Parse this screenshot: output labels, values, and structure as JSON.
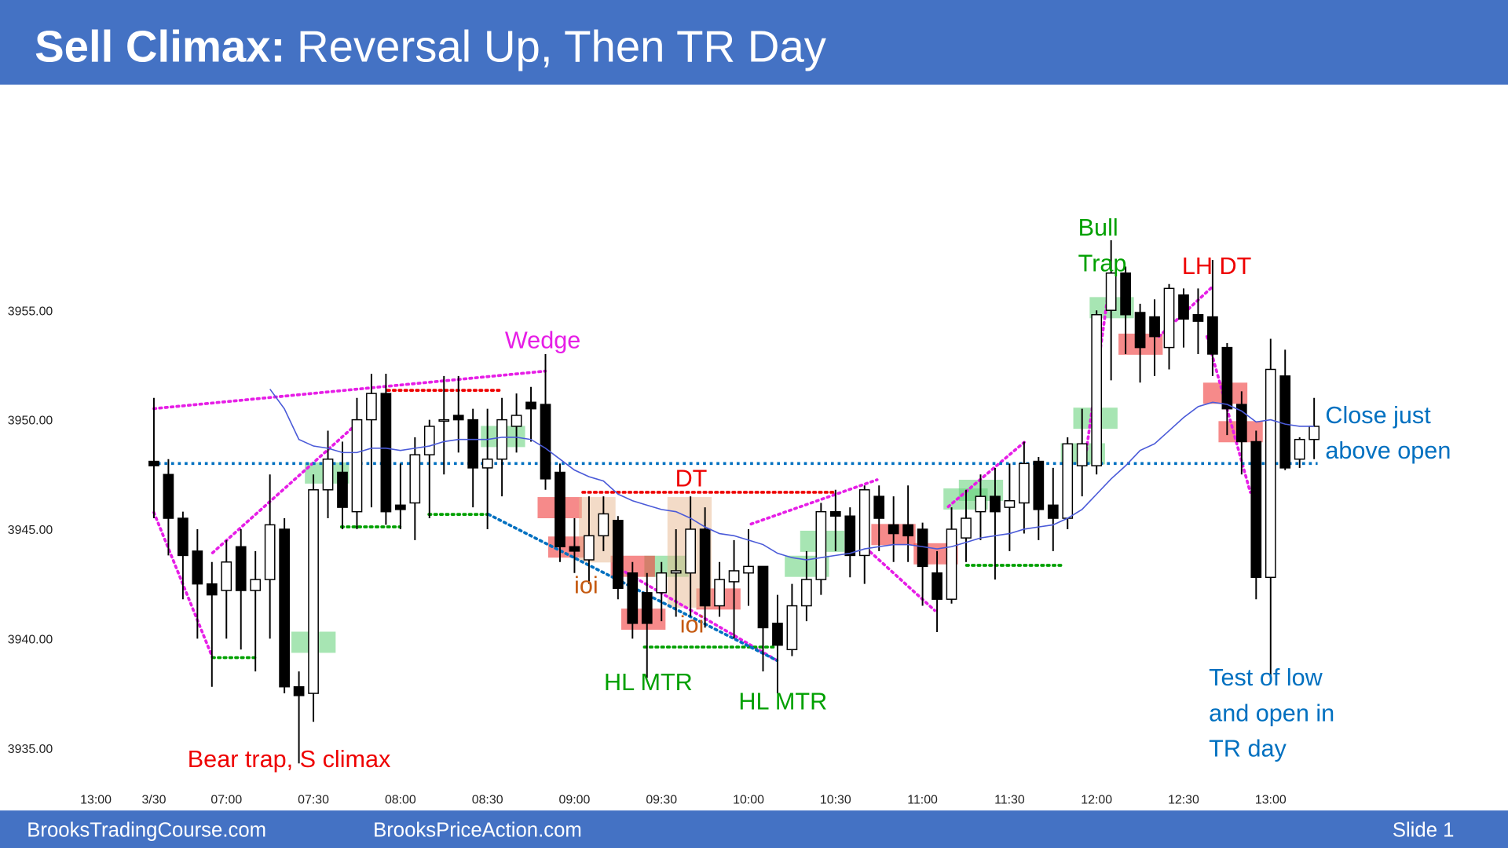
{
  "chart_data": {
    "type": "candlestick",
    "title_bold": "Sell Climax:",
    "title": "Reversal Up, Then TR Day",
    "categories": [
      "13:00",
      null,
      null,
      null,
      "3/30",
      null,
      null,
      null,
      null,
      "07:00",
      null,
      null,
      null,
      null,
      null,
      "07:30",
      null,
      null,
      null,
      null,
      null,
      "08:00",
      null,
      null,
      null,
      null,
      null,
      "08:30",
      null,
      null,
      null,
      null,
      null,
      "09:00",
      null,
      null,
      null,
      null,
      null,
      "09:30",
      null,
      null,
      null,
      null,
      null,
      "10:00",
      null,
      null,
      null,
      null,
      null,
      "10:30",
      null,
      null,
      null,
      null,
      null,
      "11:00",
      null,
      null,
      null,
      null,
      null,
      "11:30",
      null,
      null,
      null,
      null,
      null,
      "12:00",
      null,
      null,
      null,
      null,
      null,
      "12:30",
      null,
      null,
      null,
      null,
      null,
      "13:00",
      null,
      null,
      null
    ],
    "open": [
      null,
      null,
      null,
      null,
      3948.1,
      3947.5,
      3945.5,
      3944,
      3942.5,
      3942.2,
      3944.2,
      3942.2,
      3942.7,
      3945,
      3937.8,
      3937.5,
      3946.8,
      3947.6,
      3945.8,
      3950,
      3951.2,
      3946.1,
      3946.2,
      3948.4,
      3950,
      3950.2,
      3950,
      3947.8,
      3948.2,
      3949.7,
      3950.8,
      3950.7,
      3947.6,
      3944.2,
      3943.6,
      3944.7,
      3945.4,
      3943,
      3942.1,
      3942.1,
      3943,
      3943,
      3945,
      3941.5,
      3942.6,
      3943,
      3943.3,
      3940.7,
      3939.5,
      3941.5,
      3942.7,
      3945.8,
      3945.6,
      3943.8,
      3946.5,
      3945.2,
      3945.2,
      3945,
      3943,
      3941.8,
      3944.6,
      3945.8,
      3946.5,
      3946,
      3946.2,
      3948.1,
      3946.1,
      3945.5,
      3947.9,
      3947.9,
      3955,
      3956.7,
      3954.9,
      3954.7,
      3953.3,
      3955.7,
      3954.8,
      3954.7,
      3953.3,
      3950.7,
      3949,
      3942.8,
      3952,
      3948.2,
      3949.1
    ],
    "high": [
      null,
      null,
      null,
      null,
      3951,
      3948.2,
      3945.8,
      3945,
      3943.5,
      3944.5,
      3945,
      3944,
      3947.5,
      3945.5,
      3938.5,
      3947.5,
      3949.5,
      3949,
      3951,
      3952.1,
      3952.1,
      3948,
      3949.2,
      3950,
      3952,
      3952,
      3950.5,
      3950.5,
      3951,
      3951.2,
      3951.5,
      3953,
      3948,
      3945.5,
      3946.5,
      3946.5,
      3945.6,
      3943.5,
      3943,
      3943.5,
      3945,
      3946.5,
      3946,
      3943.5,
      3944.5,
      3945,
      3943.3,
      3942,
      3942.5,
      3944,
      3946.2,
      3946.8,
      3946,
      3947,
      3947,
      3946.5,
      3947,
      3945.3,
      3944,
      3946,
      3946.8,
      3947.5,
      3947.8,
      3948,
      3949,
      3948.3,
      3947.8,
      3949.2,
      3950.5,
      3955,
      3958.2,
      3957,
      3955.3,
      3955.5,
      3956.2,
      3956,
      3956,
      3957.3,
      3953.5,
      3951.3,
      3949.5,
      3953.7,
      3953.2,
      3949.2,
      3951
    ],
    "low": [
      null,
      null,
      null,
      null,
      3945.5,
      3943.8,
      3941.8,
      3940,
      3937.8,
      3940,
      3939.5,
      3938.5,
      3940,
      3937.5,
      3934.3,
      3936.2,
      3945.5,
      3945,
      3945,
      3946,
      3945.2,
      3945,
      3944.5,
      3945.5,
      3947.5,
      3948.5,
      3946,
      3945,
      3946.5,
      3948.5,
      3949,
      3946.8,
      3943.5,
      3943,
      3942.5,
      3944,
      3941.8,
      3940,
      3938.2,
      3940.8,
      3941,
      3941,
      3940.5,
      3941,
      3940,
      3941.5,
      3938.5,
      3937.5,
      3939.2,
      3940.8,
      3942,
      3944,
      3942.8,
      3942.5,
      3944,
      3943.5,
      3943.5,
      3941.5,
      3940.3,
      3941.6,
      3943.5,
      3944.5,
      3942.7,
      3944,
      3944.8,
      3944.5,
      3944,
      3945,
      3946.5,
      3947.5,
      3951.8,
      3953,
      3951.7,
      3952,
      3952.3,
      3953.3,
      3953,
      3952,
      3949.3,
      3947.5,
      3941.8,
      3938.2,
      3947.7,
      3947.8,
      3948.2
    ],
    "close": [
      null,
      null,
      null,
      null,
      3947.9,
      3945.5,
      3943.8,
      3942.5,
      3942,
      3943.5,
      3942.2,
      3942.7,
      3945.2,
      3937.8,
      3937.4,
      3946.8,
      3948.2,
      3946,
      3950,
      3951.2,
      3945.8,
      3945.9,
      3948.4,
      3949.7,
      3950,
      3950,
      3947.8,
      3948.2,
      3950,
      3950.2,
      3950.5,
      3947.3,
      3944.2,
      3944,
      3944.7,
      3945.7,
      3942.3,
      3940.7,
      3940.7,
      3943,
      3943.1,
      3945,
      3941.5,
      3942.7,
      3943.1,
      3943.3,
      3940.5,
      3939.7,
      3941.5,
      3942.7,
      3945.8,
      3945.6,
      3943.8,
      3946.8,
      3945.5,
      3944.8,
      3944.7,
      3943.3,
      3941.8,
      3945,
      3945.5,
      3946.5,
      3945.8,
      3946.3,
      3948,
      3945.9,
      3945.5,
      3948.9,
      3948.9,
      3954.8,
      3956.7,
      3954.8,
      3953.3,
      3953.8,
      3956,
      3954.6,
      3954.5,
      3953,
      3950.5,
      3949,
      3942.8,
      3952.3,
      3947.8,
      3949.1,
      3949.7
    ],
    "ema": [
      null,
      null,
      null,
      null,
      null,
      null,
      null,
      null,
      null,
      null,
      null,
      null,
      3951.4,
      3950.5,
      3949.1,
      3948.8,
      3948.7,
      3948.5,
      3948.5,
      3948.7,
      3948.7,
      3948.6,
      3948.7,
      3948.8,
      3949.0,
      3949.1,
      3949.1,
      3949.1,
      3949.2,
      3949.2,
      3949.1,
      3948.7,
      3948.2,
      3947.7,
      3947.4,
      3947.2,
      3946.6,
      3946.3,
      3946.1,
      3945.9,
      3945.8,
      3945.5,
      3945.1,
      3944.8,
      3944.7,
      3944.5,
      3944.3,
      3943.9,
      3943.7,
      3943.6,
      3943.7,
      3943.8,
      3943.9,
      3944.1,
      3944.2,
      3944.3,
      3944.3,
      3944.2,
      3944.1,
      3944.2,
      3944.4,
      3944.6,
      3944.7,
      3944.8,
      3945.0,
      3945.1,
      3945.2,
      3945.5,
      3945.9,
      3946.6,
      3947.3,
      3947.9,
      3948.6,
      3948.9,
      3949.5,
      3950.1,
      3950.6,
      3950.8,
      3950.7,
      3950.4,
      3949.9,
      3950.0,
      3949.8,
      3949.7,
      3949.7
    ],
    "ema_color": "#4a5ad8",
    "up_color": "#ffffff",
    "down_color": "#000000",
    "open_price": 3948,
    "open_price_color": "#0070c0",
    "ylim": [
      3932.5,
      3962.5
    ],
    "yticks": [
      {
        "value": 3935,
        "label": "3935.00"
      },
      {
        "value": 3940,
        "label": "3940.00"
      },
      {
        "value": 3945,
        "label": "3945.00"
      },
      {
        "value": 3950,
        "label": "3950.00"
      },
      {
        "value": 3955,
        "label": "3955.00"
      }
    ],
    "annotations": [
      {
        "lines": [
          "Wedge"
        ],
        "color": "#e61ee6"
      },
      {
        "lines": [
          "DT"
        ],
        "color": "#ee0000"
      },
      {
        "lines": [
          "ioi"
        ],
        "color": "#c55a11"
      },
      {
        "lines": [
          "ioi"
        ],
        "color": "#c55a11"
      },
      {
        "lines": [
          "HL MTR"
        ],
        "color": "#00a000"
      },
      {
        "lines": [
          "HL MTR"
        ],
        "color": "#00a000"
      },
      {
        "lines": [
          "Bull",
          "Trap"
        ],
        "color": "#00a000"
      },
      {
        "lines": [
          "LH DT"
        ],
        "color": "#ee0000"
      },
      {
        "lines": [
          "Close just",
          "above open"
        ],
        "color": "#0070c0"
      },
      {
        "lines": [
          "Test of low",
          "and open in",
          "TR day"
        ],
        "color": "#0070c0"
      },
      {
        "lines": [
          "Bear trap, S climax"
        ],
        "color": "#ee0000"
      }
    ]
  },
  "footer": {
    "left": "BrooksTradingCourse.com",
    "middle": "BrooksPriceAction.com",
    "right": "Slide  1"
  }
}
